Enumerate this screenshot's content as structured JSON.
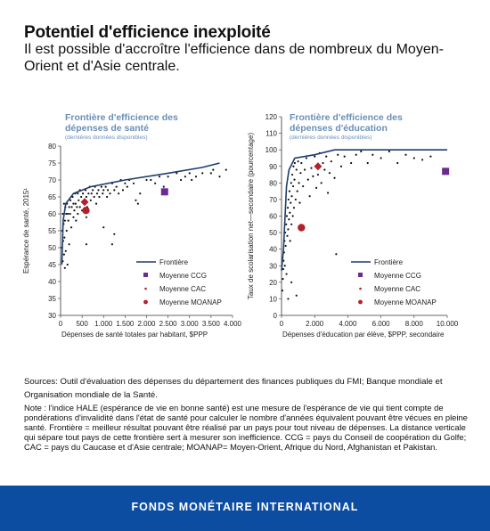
{
  "title": "Potentiel d'efficience inexploité",
  "subtitle": "Il est possible d'accroître l'efficience dans de nombreux du Moyen-Orient et d'Asie centrale.",
  "chart_data": [
    {
      "type": "scatter",
      "title": "Frontière d'efficience des dépenses de santé",
      "subtitle": "(dernières données disponibles)",
      "xlabel": "Dépenses de santé totales par habitant, $PPP",
      "ylabel": "Espérance de santé, 2015¹",
      "xlim": [
        0,
        4000
      ],
      "ylim": [
        30,
        80
      ],
      "xticks": [
        0,
        500,
        1000,
        1500,
        2000,
        2500,
        3000,
        3500,
        4000
      ],
      "xtick_labels": [
        "0",
        "500",
        "1.000",
        "1.500",
        "2.000",
        "2.500",
        "3.000",
        "3.500",
        "4.000"
      ],
      "yticks": [
        30,
        35,
        40,
        45,
        50,
        55,
        60,
        65,
        70,
        75,
        80
      ],
      "ytick_labels": [
        "30",
        "35",
        "40",
        "45",
        "50",
        "55",
        "60",
        "65",
        "70",
        "75",
        "80"
      ],
      "legend_position": "bottom-right",
      "legend": [
        "Frontière",
        "Moyenne CCG",
        "Moyenne CAC",
        "Moyenne MOANAP"
      ],
      "colors": {
        "frontier": "#1f3d6b",
        "ccg": "#6b2c91",
        "cac": "#b3202a",
        "moanap": "#b3202a",
        "countries": "#111111"
      },
      "frontier": [
        [
          30,
          45
        ],
        [
          60,
          58
        ],
        [
          120,
          63
        ],
        [
          300,
          66
        ],
        [
          700,
          68
        ],
        [
          1500,
          70
        ],
        [
          2500,
          72
        ],
        [
          3300,
          73.7
        ],
        [
          3700,
          75
        ]
      ],
      "ccg": [
        2420,
        66.5
      ],
      "cac": [
        560,
        63.5
      ],
      "moanap": [
        590,
        61
      ],
      "countries": [
        [
          30,
          50
        ],
        [
          40,
          55
        ],
        [
          50,
          46
        ],
        [
          50,
          60
        ],
        [
          60,
          52
        ],
        [
          70,
          57
        ],
        [
          80,
          48
        ],
        [
          80,
          63
        ],
        [
          90,
          53
        ],
        [
          100,
          58
        ],
        [
          100,
          44
        ],
        [
          110,
          62
        ],
        [
          120,
          49
        ],
        [
          130,
          60
        ],
        [
          140,
          55
        ],
        [
          150,
          63
        ],
        [
          160,
          45
        ],
        [
          170,
          60
        ],
        [
          180,
          58
        ],
        [
          200,
          62
        ],
        [
          200,
          51
        ],
        [
          220,
          60
        ],
        [
          230,
          64
        ],
        [
          250,
          56
        ],
        [
          260,
          62
        ],
        [
          280,
          65
        ],
        [
          300,
          59
        ],
        [
          300,
          63
        ],
        [
          320,
          61
        ],
        [
          340,
          66
        ],
        [
          350,
          63
        ],
        [
          360,
          58
        ],
        [
          380,
          62
        ],
        [
          400,
          60
        ],
        [
          400,
          66
        ],
        [
          420,
          64
        ],
        [
          450,
          62
        ],
        [
          450,
          67
        ],
        [
          480,
          65
        ],
        [
          500,
          61
        ],
        [
          520,
          66
        ],
        [
          550,
          64
        ],
        [
          580,
          67
        ],
        [
          600,
          59
        ],
        [
          600,
          65
        ],
        [
          620,
          62
        ],
        [
          650,
          66
        ],
        [
          680,
          68
        ],
        [
          700,
          64
        ],
        [
          720,
          66
        ],
        [
          750,
          67
        ],
        [
          780,
          65
        ],
        [
          800,
          68
        ],
        [
          830,
          63
        ],
        [
          850,
          66
        ],
        [
          880,
          67
        ],
        [
          900,
          65
        ],
        [
          950,
          68
        ],
        [
          980,
          66
        ],
        [
          1000,
          67
        ],
        [
          1050,
          68
        ],
        [
          1080,
          65
        ],
        [
          1100,
          67
        ],
        [
          1150,
          66
        ],
        [
          1200,
          69
        ],
        [
          1250,
          67
        ],
        [
          1300,
          68
        ],
        [
          1350,
          66
        ],
        [
          1400,
          70
        ],
        [
          1450,
          67
        ],
        [
          1500,
          69
        ],
        [
          1550,
          68
        ],
        [
          1600,
          70
        ],
        [
          1700,
          69
        ],
        [
          1750,
          64
        ],
        [
          1850,
          66
        ],
        [
          2000,
          70
        ],
        [
          2100,
          70
        ],
        [
          2200,
          69
        ],
        [
          2300,
          71
        ],
        [
          2400,
          68
        ],
        [
          2500,
          71
        ],
        [
          2700,
          72
        ],
        [
          2800,
          70
        ],
        [
          2900,
          71
        ],
        [
          3000,
          72
        ],
        [
          3050,
          70
        ],
        [
          3150,
          71
        ],
        [
          3300,
          72
        ],
        [
          3500,
          72
        ],
        [
          3550,
          73
        ],
        [
          3700,
          71
        ],
        [
          3850,
          73
        ],
        [
          1200,
          51
        ],
        [
          1250,
          54
        ],
        [
          600,
          51
        ],
        [
          1000,
          56
        ],
        [
          1800,
          63
        ]
      ]
    },
    {
      "type": "scatter",
      "title": "Frontière d'efficience des dépenses d'éducation",
      "subtitle": "(dernières données disponibles)",
      "xlabel": "Dépenses d'éducation par élève, $PPP, secondaire",
      "ylabel": "Taux de scolarisation net—secondaire (pourcentage)",
      "xlim": [
        0,
        10000
      ],
      "ylim": [
        0,
        120
      ],
      "xticks": [
        0,
        2000,
        4000,
        6000,
        8000,
        10000
      ],
      "xtick_labels": [
        "0",
        "2.000",
        "4.000",
        "6.000",
        "8.000",
        "10.000"
      ],
      "yticks": [
        0,
        10,
        20,
        30,
        40,
        50,
        60,
        70,
        80,
        90,
        100,
        110,
        120
      ],
      "ytick_labels": [
        "0",
        "10",
        "20",
        "30",
        "40",
        "50",
        "60",
        "70",
        "80",
        "90",
        "100",
        "110",
        "120"
      ],
      "legend_position": "bottom-right",
      "legend": [
        "Frontière",
        "Moyenne CCG",
        "Moyenne CAC",
        "Moyenne MOANAP"
      ],
      "colors": {
        "frontier": "#1f3d6b",
        "ccg": "#6b2c91",
        "cac": "#b3202a",
        "moanap": "#b3202a",
        "countries": "#111111"
      },
      "frontier": [
        [
          0,
          27
        ],
        [
          120,
          40
        ],
        [
          300,
          78
        ],
        [
          450,
          88
        ],
        [
          800,
          95
        ],
        [
          2000,
          97
        ],
        [
          3200,
          100
        ],
        [
          10000,
          100
        ]
      ],
      "ccg": [
        9900,
        87
      ],
      "cac": [
        2200,
        90
      ],
      "moanap": [
        1200,
        53
      ],
      "countries": [
        [
          50,
          15
        ],
        [
          80,
          22
        ],
        [
          100,
          28
        ],
        [
          120,
          33
        ],
        [
          150,
          38
        ],
        [
          180,
          45
        ],
        [
          200,
          30
        ],
        [
          220,
          50
        ],
        [
          250,
          42
        ],
        [
          280,
          55
        ],
        [
          300,
          25
        ],
        [
          320,
          60
        ],
        [
          350,
          48
        ],
        [
          380,
          65
        ],
        [
          400,
          52
        ],
        [
          420,
          70
        ],
        [
          450,
          58
        ],
        [
          480,
          75
        ],
        [
          500,
          62
        ],
        [
          520,
          45
        ],
        [
          550,
          68
        ],
        [
          580,
          80
        ],
        [
          600,
          55
        ],
        [
          620,
          72
        ],
        [
          650,
          85
        ],
        [
          680,
          60
        ],
        [
          700,
          78
        ],
        [
          720,
          90
        ],
        [
          750,
          65
        ],
        [
          780,
          82
        ],
        [
          800,
          92
        ],
        [
          850,
          70
        ],
        [
          900,
          88
        ],
        [
          950,
          75
        ],
        [
          1000,
          93
        ],
        [
          1050,
          80
        ],
        [
          1100,
          68
        ],
        [
          1150,
          86
        ],
        [
          1200,
          92
        ],
        [
          1300,
          78
        ],
        [
          1400,
          88
        ],
        [
          1500,
          95
        ],
        [
          1600,
          82
        ],
        [
          1700,
          72
        ],
        [
          1800,
          89
        ],
        [
          1900,
          84
        ],
        [
          2000,
          96
        ],
        [
          2100,
          77
        ],
        [
          2200,
          85
        ],
        [
          2300,
          98
        ],
        [
          2400,
          80
        ],
        [
          2500,
          92
        ],
        [
          2600,
          88
        ],
        [
          2700,
          96
        ],
        [
          2800,
          74
        ],
        [
          2900,
          86
        ],
        [
          3000,
          93
        ],
        [
          3200,
          83
        ],
        [
          3400,
          97
        ],
        [
          3600,
          90
        ],
        [
          3800,
          96
        ],
        [
          4200,
          92
        ],
        [
          4500,
          97
        ],
        [
          4800,
          99
        ],
        [
          5200,
          92
        ],
        [
          5500,
          97
        ],
        [
          6000,
          95
        ],
        [
          6500,
          99
        ],
        [
          7000,
          92
        ],
        [
          7500,
          97
        ],
        [
          8000,
          95
        ],
        [
          8500,
          94
        ],
        [
          9000,
          96
        ],
        [
          3300,
          37
        ],
        [
          900,
          12
        ],
        [
          600,
          20
        ],
        [
          400,
          10
        ]
      ]
    }
  ],
  "sources": "Sources: Outil d'évaluation des dépenses du département des finances publiques du FMI; Banque mondiale et Organisation mondiale de la Santé.",
  "note": "Note : l'indice HALE (espérance de vie en bonne santé) est une mesure de l'espérance de vie qui tient compte de pondérations d'invalidité dans l'état de santé pour calculer le nombre d'années équivalent pouvant être vécues en pleine santé. Frontière = meilleur résultat pouvant être réalisé par un pays pour tout niveau de dépenses. La distance verticale qui sépare tout pays de cette frontière sert à mesurer son inefficience. CCG = pays du Conseil de coopération du Golfe; CAC = pays du Caucase et d'Asie centrale; MOANAP= Moyen-Orient, Afrique du Nord, Afghanistan et Pakistan.",
  "footer": "FONDS MONÉTAIRE INTERNATIONAL"
}
